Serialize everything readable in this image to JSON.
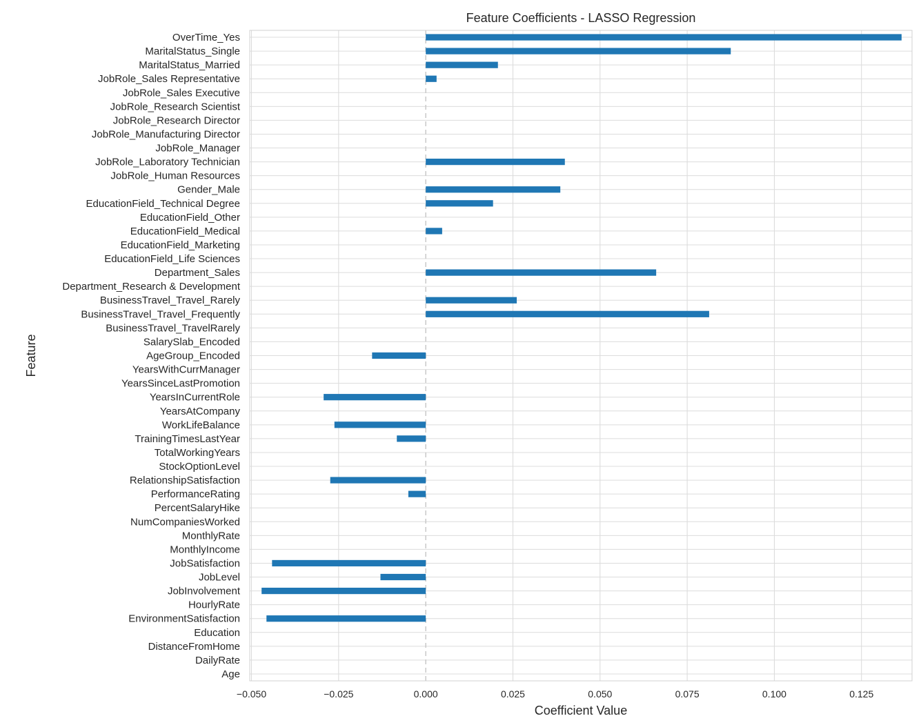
{
  "chart_data": {
    "type": "bar",
    "orientation": "horizontal",
    "title": "Feature Coefficients - LASSO Regression",
    "xlabel": "Coefficient Value",
    "ylabel": "Feature",
    "xlim": [
      -0.0505,
      0.1395
    ],
    "xticks": [
      -0.05,
      -0.025,
      0.0,
      0.025,
      0.05,
      0.075,
      0.1,
      0.125
    ],
    "xtick_labels": [
      "−0.050",
      "−0.025",
      "0.000",
      "0.025",
      "0.050",
      "0.075",
      "0.100",
      "0.125"
    ],
    "grid": true,
    "zero_line": "dashed",
    "bar_color": "#1f77b4",
    "categories": [
      "OverTime_Yes",
      "MaritalStatus_Single",
      "MaritalStatus_Married",
      "JobRole_Sales Representative",
      "JobRole_Sales Executive",
      "JobRole_Research Scientist",
      "JobRole_Research Director",
      "JobRole_Manufacturing Director",
      "JobRole_Manager",
      "JobRole_Laboratory Technician",
      "JobRole_Human Resources",
      "Gender_Male",
      "EducationField_Technical Degree",
      "EducationField_Other",
      "EducationField_Medical",
      "EducationField_Marketing",
      "EducationField_Life Sciences",
      "Department_Sales",
      "Department_Research & Development",
      "BusinessTravel_Travel_Rarely",
      "BusinessTravel_Travel_Frequently",
      "BusinessTravel_TravelRarely",
      "SalarySlab_Encoded",
      "AgeGroup_Encoded",
      "YearsWithCurrManager",
      "YearsSinceLastPromotion",
      "YearsInCurrentRole",
      "YearsAtCompany",
      "WorkLifeBalance",
      "TrainingTimesLastYear",
      "TotalWorkingYears",
      "StockOptionLevel",
      "RelationshipSatisfaction",
      "PerformanceRating",
      "PercentSalaryHike",
      "NumCompaniesWorked",
      "MonthlyRate",
      "MonthlyIncome",
      "JobSatisfaction",
      "JobLevel",
      "JobInvolvement",
      "HourlyRate",
      "EnvironmentSatisfaction",
      "Education",
      "DistanceFromHome",
      "DailyRate",
      "Age"
    ],
    "values": [
      0.1365,
      0.0875,
      0.0207,
      0.0031,
      0,
      0,
      0,
      0,
      0,
      0.0399,
      0,
      0.0386,
      0.0193,
      0,
      0.0047,
      0,
      0,
      0.0661,
      0,
      0.0261,
      0.0813,
      0,
      0,
      -0.0154,
      0,
      0,
      -0.0293,
      0,
      -0.0262,
      -0.0083,
      0,
      0,
      -0.0274,
      -0.005,
      0,
      0,
      0,
      0,
      -0.0441,
      -0.013,
      -0.0471,
      0,
      -0.0457,
      0,
      0,
      0,
      0
    ]
  }
}
